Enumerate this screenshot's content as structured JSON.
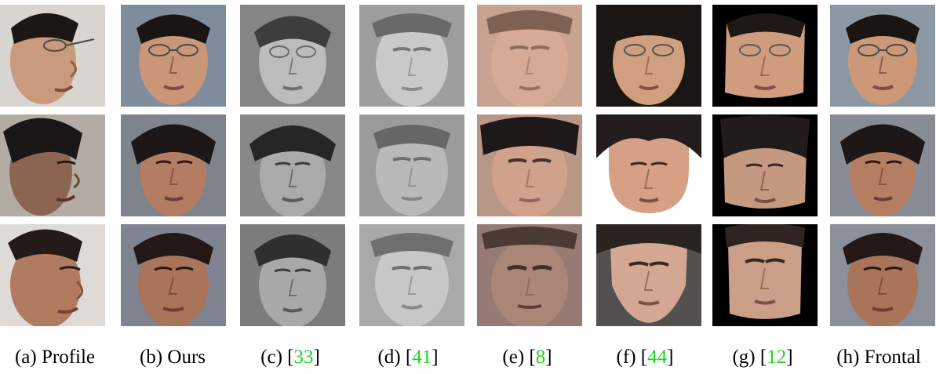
{
  "figure": {
    "columns": [
      {
        "key": "a",
        "label_prefix": "(a)",
        "label_text": "Profile",
        "ref": "",
        "style": "color"
      },
      {
        "key": "b",
        "label_prefix": "(b)",
        "label_text": "Ours",
        "ref": "",
        "style": "color"
      },
      {
        "key": "c",
        "label_prefix": "(c)",
        "label_text": "",
        "ref": "33",
        "style": "gray"
      },
      {
        "key": "d",
        "label_prefix": "(d)",
        "label_text": "",
        "ref": "41",
        "style": "gray-blur"
      },
      {
        "key": "e",
        "label_prefix": "(e)",
        "label_text": "",
        "ref": "8",
        "style": "color-blur"
      },
      {
        "key": "f",
        "label_prefix": "(f)",
        "label_text": "",
        "ref": "44",
        "style": "warp-dark"
      },
      {
        "key": "g",
        "label_prefix": "(g)",
        "label_text": "",
        "ref": "12",
        "style": "warp-black"
      },
      {
        "key": "h",
        "label_prefix": "(h)",
        "label_text": "Frontal",
        "ref": "",
        "style": "color"
      }
    ],
    "rows": [
      "subject-1",
      "subject-2",
      "subject-3"
    ],
    "colors": {
      "reference_link": "#1ed51e",
      "caption_text": "#000000"
    }
  }
}
